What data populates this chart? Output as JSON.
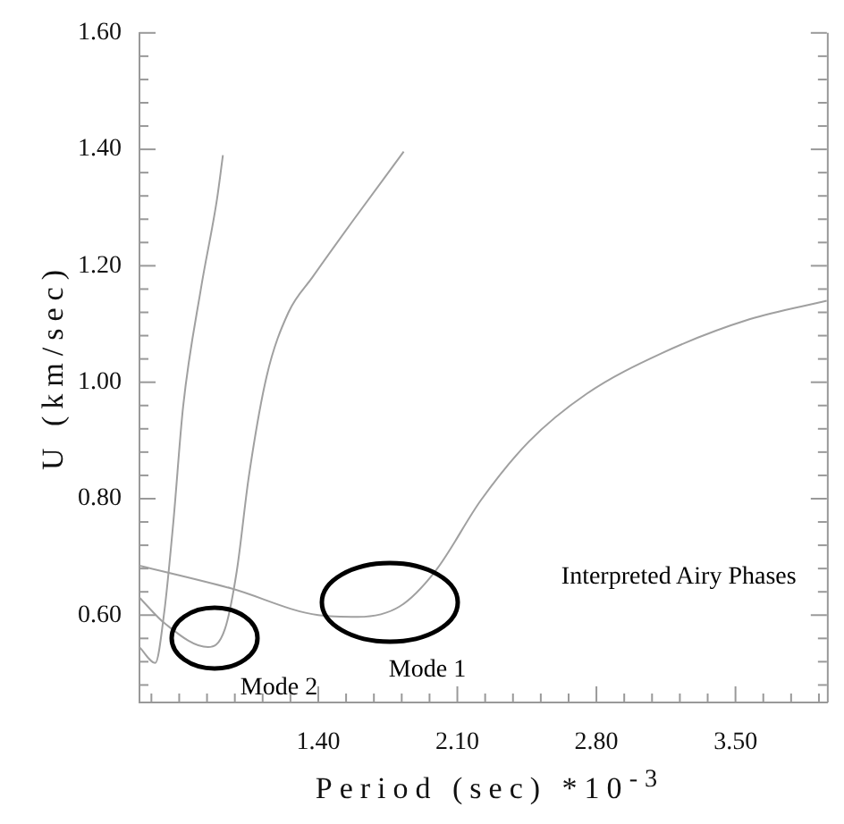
{
  "chart_data": {
    "type": "line",
    "xlabel": "Period (sec) *10$^{-3}$",
    "ylabel": "U (km/sec)",
    "xlim": [
      0.5,
      3.96
    ],
    "ylim": [
      0.45,
      1.6
    ],
    "xticks": [
      {
        "value": 0.56,
        "label": null
      },
      {
        "value": 0.7,
        "label": null
      },
      {
        "value": 0.84,
        "label": null
      },
      {
        "value": 0.98,
        "label": null
      },
      {
        "value": 1.12,
        "label": null
      },
      {
        "value": 1.26,
        "label": null
      },
      {
        "value": 1.4,
        "label": "1.40"
      },
      {
        "value": 1.54,
        "label": null
      },
      {
        "value": 1.68,
        "label": null
      },
      {
        "value": 1.82,
        "label": null
      },
      {
        "value": 1.96,
        "label": null
      },
      {
        "value": 2.1,
        "label": "2.10"
      },
      {
        "value": 2.24,
        "label": null
      },
      {
        "value": 2.38,
        "label": null
      },
      {
        "value": 2.52,
        "label": null
      },
      {
        "value": 2.66,
        "label": null
      },
      {
        "value": 2.8,
        "label": "2.80"
      },
      {
        "value": 2.94,
        "label": null
      },
      {
        "value": 3.08,
        "label": null
      },
      {
        "value": 3.22,
        "label": null
      },
      {
        "value": 3.36,
        "label": null
      },
      {
        "value": 3.5,
        "label": "3.50"
      },
      {
        "value": 3.64,
        "label": null
      },
      {
        "value": 3.78,
        "label": null
      },
      {
        "value": 3.92,
        "label": null
      }
    ],
    "yticks": [
      {
        "value": 0.48,
        "label": null
      },
      {
        "value": 0.52,
        "label": null
      },
      {
        "value": 0.56,
        "label": null
      },
      {
        "value": 0.6,
        "label": "0.60"
      },
      {
        "value": 0.64,
        "label": null
      },
      {
        "value": 0.68,
        "label": null
      },
      {
        "value": 0.72,
        "label": null
      },
      {
        "value": 0.76,
        "label": null
      },
      {
        "value": 0.8,
        "label": "0.80"
      },
      {
        "value": 0.84,
        "label": null
      },
      {
        "value": 0.88,
        "label": null
      },
      {
        "value": 0.92,
        "label": null
      },
      {
        "value": 0.96,
        "label": null
      },
      {
        "value": 1.0,
        "label": "1.00"
      },
      {
        "value": 1.04,
        "label": null
      },
      {
        "value": 1.08,
        "label": null
      },
      {
        "value": 1.12,
        "label": null
      },
      {
        "value": 1.16,
        "label": null
      },
      {
        "value": 1.2,
        "label": "1.20"
      },
      {
        "value": 1.24,
        "label": null
      },
      {
        "value": 1.28,
        "label": null
      },
      {
        "value": 1.32,
        "label": null
      },
      {
        "value": 1.36,
        "label": null
      },
      {
        "value": 1.4,
        "label": "1.40"
      },
      {
        "value": 1.44,
        "label": null
      },
      {
        "value": 1.48,
        "label": null
      },
      {
        "value": 1.52,
        "label": null
      },
      {
        "value": 1.56,
        "label": null
      },
      {
        "value": 1.6,
        "label": "1.60"
      }
    ],
    "grid": false,
    "legend": false,
    "marker": "none",
    "line_style": "solid",
    "series": [
      {
        "color": "#a0a0a0",
        "x": [
          0.5,
          0.58,
          0.625,
          0.67,
          0.72,
          0.81,
          0.89,
          0.92
        ],
        "values": [
          0.545,
          0.518,
          0.606,
          0.758,
          0.959,
          1.162,
          1.314,
          1.39
        ]
      },
      {
        "color": "#a0a0a0",
        "x": [
          0.5,
          0.63,
          0.845,
          0.93,
          0.99,
          1.05,
          1.14,
          1.25,
          1.37,
          1.58,
          1.83
        ],
        "values": [
          0.63,
          0.585,
          0.545,
          0.576,
          0.676,
          0.837,
          1.01,
          1.12,
          1.18,
          1.28,
          1.396
        ]
      },
      {
        "color": "#a0a0a0",
        "x": [
          0.5,
          0.96,
          1.4,
          1.6,
          1.81,
          1.99,
          2.22,
          2.46,
          2.75,
          3.13,
          3.57,
          3.96
        ],
        "values": [
          0.685,
          0.646,
          0.6,
          0.597,
          0.615,
          0.676,
          0.798,
          0.898,
          0.98,
          1.05,
          1.108,
          1.14
        ]
      }
    ],
    "annotations": [
      "Interpreted Airy Phases",
      "Mode 1",
      "Mode 2"
    ]
  }
}
